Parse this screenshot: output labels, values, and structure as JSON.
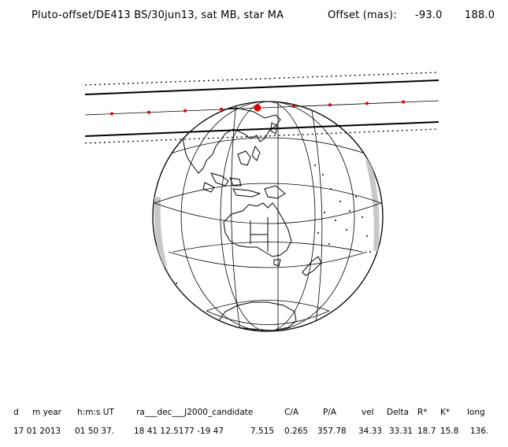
{
  "title": "Pluto-offset/DE413 BS/30jun13, sat MB, star MA",
  "offset_label": "Offset (mas):",
  "offset_values": [
    "-93.0",
    "188.0"
  ],
  "colors": {
    "track_dots": "#e00000",
    "lines": "#000000",
    "shade": "#c8c8c8"
  },
  "table": {
    "headers": [
      "d",
      "m year",
      "h:m:s UT",
      "ra___dec___J2000_candidate",
      "C/A",
      "P/A",
      "vel",
      "Delta",
      "R*",
      "K*",
      "long"
    ],
    "row": [
      "17 01 2013",
      "01 50 37.",
      "18 41 12.5177 -19 47",
      "7.515",
      "0.265",
      "357.78",
      "34.33",
      "33.31",
      "18.7",
      "15.8",
      "136."
    ]
  }
}
